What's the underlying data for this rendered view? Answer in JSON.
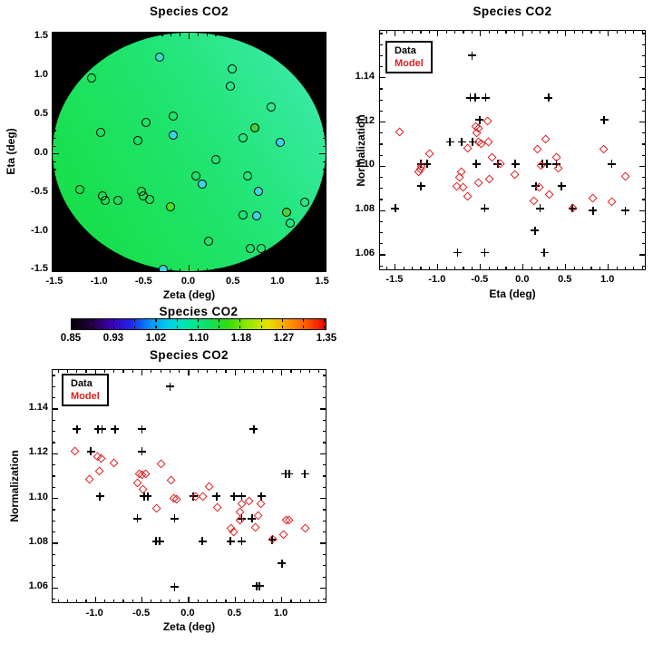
{
  "figure": {
    "background": "#ffffff"
  },
  "colors": {
    "data_marker": "#000000",
    "model_marker": "#dd2020",
    "legend_model_text": "#dd2020",
    "map_background": "#000000"
  },
  "legend": {
    "data_label": "Data",
    "model_label": "Model"
  },
  "chart_data": [
    {
      "id": "map",
      "type": "scatter",
      "title": "Species CO2",
      "xlabel": "Zeta (deg)",
      "ylabel": "Eta (deg)",
      "xlim": [
        -1.53,
        1.55
      ],
      "ylim": [
        -1.53,
        1.56
      ],
      "xticks": [
        -1.5,
        -1.0,
        -0.5,
        0.0,
        0.5,
        1.0,
        1.5
      ],
      "yticks": [
        -1.5,
        -1.0,
        -0.5,
        0.0,
        0.5,
        1.0,
        1.5
      ],
      "background": "#000000",
      "field_shape": "circle",
      "field_angle": "58deg",
      "field_gradient": [
        "#15dd3c",
        "#20e573",
        "#40ebb4"
      ],
      "points": [
        [
          -0.33,
          1.24,
          "#35dccc"
        ],
        [
          -1.09,
          0.98,
          ""
        ],
        [
          0.48,
          1.09,
          ""
        ],
        [
          0.46,
          0.87,
          ""
        ],
        [
          0.92,
          0.6,
          ""
        ],
        [
          -0.18,
          0.49,
          ""
        ],
        [
          -0.48,
          0.41,
          ""
        ],
        [
          0.74,
          0.34,
          "#44cf36"
        ],
        [
          -0.99,
          0.28,
          ""
        ],
        [
          -0.18,
          0.24,
          "#3cd2e8"
        ],
        [
          0.6,
          0.21,
          ""
        ],
        [
          -0.57,
          0.17,
          ""
        ],
        [
          1.02,
          0.15,
          "#3cd2e8"
        ],
        [
          0.3,
          -0.07,
          ""
        ],
        [
          0.08,
          -0.28,
          ""
        ],
        [
          0.66,
          -0.28,
          ""
        ],
        [
          0.15,
          -0.39,
          "#3cd2e8"
        ],
        [
          -1.22,
          -0.46,
          ""
        ],
        [
          0.78,
          -0.48,
          "#3cd2e8"
        ],
        [
          -0.53,
          -0.48,
          ""
        ],
        [
          -0.51,
          -0.54,
          ""
        ],
        [
          -0.44,
          -0.58,
          ""
        ],
        [
          -0.97,
          -0.54,
          ""
        ],
        [
          -0.94,
          -0.6,
          ""
        ],
        [
          -0.8,
          -0.6,
          ""
        ],
        [
          1.3,
          -0.62,
          ""
        ],
        [
          -0.21,
          -0.68,
          "#3fe81e"
        ],
        [
          0.6,
          -0.78,
          ""
        ],
        [
          0.76,
          -0.8,
          "#3cd2e8"
        ],
        [
          1.09,
          -0.75,
          "#4ad438"
        ],
        [
          1.13,
          -0.89,
          ""
        ],
        [
          0.22,
          -1.12,
          ""
        ],
        [
          0.69,
          -1.22,
          ""
        ],
        [
          0.81,
          -1.22,
          ""
        ],
        [
          -0.29,
          -1.48,
          "#3cd2e8"
        ]
      ]
    },
    {
      "id": "eta",
      "type": "scatter",
      "title": "Species CO2",
      "xlabel": "Eta (deg)",
      "ylabel": "Normalization",
      "xlim": [
        -1.68,
        1.45
      ],
      "ylim": [
        1.0526,
        1.1612
      ],
      "xticks": [
        -1.5,
        -1.0,
        -0.5,
        0.0,
        0.5,
        1.0
      ],
      "yticks": [
        1.06,
        1.08,
        1.1,
        1.12,
        1.14
      ],
      "legend": [
        "Data",
        "Model"
      ],
      "series": [
        {
          "name": "Data",
          "marker": "plus",
          "color": "#000000",
          "points": [
            [
              -0.6,
              1.15
            ],
            [
              -0.62,
              1.131
            ],
            [
              -0.56,
              1.131
            ],
            [
              -0.44,
              1.131
            ],
            [
              0.3,
              1.131
            ],
            [
              -0.51,
              1.121
            ],
            [
              0.95,
              1.121
            ],
            [
              -0.86,
              1.111
            ],
            [
              -0.72,
              1.111
            ],
            [
              -0.59,
              1.111
            ],
            [
              -1.2,
              1.101
            ],
            [
              -1.13,
              1.101
            ],
            [
              -0.55,
              1.101
            ],
            [
              -0.3,
              1.101
            ],
            [
              -0.09,
              1.101
            ],
            [
              0.23,
              1.101
            ],
            [
              0.28,
              1.101
            ],
            [
              0.39,
              1.101
            ],
            [
              1.04,
              1.101
            ],
            [
              -1.2,
              1.091
            ],
            [
              0.15,
              1.091
            ],
            [
              0.45,
              1.091
            ],
            [
              -1.5,
              1.081
            ],
            [
              -0.45,
              1.081
            ],
            [
              0.2,
              1.081
            ],
            [
              0.58,
              1.081
            ],
            [
              0.82,
              1.08
            ],
            [
              1.2,
              1.08
            ],
            [
              0.14,
              1.071
            ],
            [
              -0.77,
              1.061
            ],
            [
              -0.45,
              1.061
            ],
            [
              0.25,
              1.061
            ]
          ]
        },
        {
          "name": "Model",
          "marker": "diamond",
          "color": "#dd2020",
          "points": [
            [
              -1.45,
              1.1155
            ],
            [
              -1.1,
              1.1055
            ],
            [
              -1.19,
              1.1
            ],
            [
              -1.21,
              1.0985
            ],
            [
              -1.23,
              1.0975
            ],
            [
              -0.42,
              1.1205
            ],
            [
              -0.56,
              1.118
            ],
            [
              -0.52,
              1.117
            ],
            [
              -0.54,
              1.115
            ],
            [
              -0.52,
              1.111
            ],
            [
              -0.49,
              1.11
            ],
            [
              -0.41,
              1.111
            ],
            [
              -0.65,
              1.108
            ],
            [
              -0.73,
              1.0975
            ],
            [
              -0.75,
              1.095
            ],
            [
              -0.78,
              1.091
            ],
            [
              -0.7,
              1.0905
            ],
            [
              -0.65,
              1.0865
            ],
            [
              -0.52,
              1.0925
            ],
            [
              -0.36,
              1.104
            ],
            [
              -0.27,
              1.101
            ],
            [
              -0.4,
              1.094
            ],
            [
              -0.1,
              1.0963
            ],
            [
              0.26,
              1.112
            ],
            [
              0.17,
              1.1076
            ],
            [
              0.39,
              1.104
            ],
            [
              0.21,
              1.1005
            ],
            [
              0.41,
              1.099
            ],
            [
              0.13,
              1.0845
            ],
            [
              0.19,
              1.0905
            ],
            [
              0.31,
              1.087
            ],
            [
              0.58,
              1.0812
            ],
            [
              0.82,
              1.0857
            ],
            [
              0.95,
              1.1076
            ],
            [
              1.04,
              1.084
            ],
            [
              1.2,
              1.0952
            ]
          ]
        }
      ]
    },
    {
      "id": "cbar",
      "type": "colorbar",
      "title": "Species CO2",
      "ticks": [
        0.85,
        0.93,
        1.02,
        1.1,
        1.18,
        1.27,
        1.35
      ],
      "minor_divisions": 12,
      "gradient": [
        "#050005",
        "#23003c",
        "#3d00b0",
        "#2222ee",
        "#0090ff",
        "#00d2e8",
        "#00e8a0",
        "#10e060",
        "#30dc10",
        "#90e800",
        "#e2e400",
        "#ffa000",
        "#ff5a00",
        "#ee0000"
      ]
    },
    {
      "id": "zeta",
      "type": "scatter",
      "title": "Species CO2",
      "xlabel": "Zeta (deg)",
      "ylabel": "Normalization",
      "xlim": [
        -1.46,
        1.49
      ],
      "ylim": [
        1.0529,
        1.1574
      ],
      "xticks": [
        -1.0,
        -0.5,
        0.0,
        0.5,
        1.0
      ],
      "yticks": [
        1.06,
        1.08,
        1.1,
        1.12,
        1.14
      ],
      "legend": [
        "Data",
        "Model"
      ],
      "series": [
        {
          "name": "Data",
          "marker": "plus",
          "color": "#000000",
          "points": [
            [
              -0.2,
              1.15
            ],
            [
              -1.2,
              1.131
            ],
            [
              -0.97,
              1.131
            ],
            [
              -0.93,
              1.131
            ],
            [
              -0.79,
              1.131
            ],
            [
              -0.5,
              1.131
            ],
            [
              0.7,
              1.131
            ],
            [
              -1.05,
              1.121
            ],
            [
              -0.5,
              1.121
            ],
            [
              1.04,
              1.111
            ],
            [
              1.08,
              1.111
            ],
            [
              1.25,
              1.111
            ],
            [
              -0.95,
              1.101
            ],
            [
              -0.48,
              1.101
            ],
            [
              -0.44,
              1.101
            ],
            [
              0.05,
              1.101
            ],
            [
              0.3,
              1.101
            ],
            [
              0.49,
              1.101
            ],
            [
              0.57,
              1.101
            ],
            [
              0.78,
              1.101
            ],
            [
              -0.55,
              1.091
            ],
            [
              -0.15,
              1.091
            ],
            [
              0.57,
              1.091
            ],
            [
              0.68,
              1.091
            ],
            [
              -0.35,
              1.081
            ],
            [
              -0.31,
              1.081
            ],
            [
              0.15,
              1.081
            ],
            [
              0.45,
              1.081
            ],
            [
              0.57,
              1.081
            ],
            [
              0.9,
              1.0815
            ],
            [
              1.0,
              1.071
            ],
            [
              -0.15,
              1.0605
            ],
            [
              0.73,
              1.061
            ],
            [
              0.76,
              1.061
            ]
          ]
        },
        {
          "name": "Model",
          "marker": "diamond",
          "color": "#dd2020",
          "points": [
            [
              -1.22,
              1.121
            ],
            [
              -0.98,
              1.1185
            ],
            [
              -0.94,
              1.118
            ],
            [
              -0.8,
              1.116
            ],
            [
              -0.96,
              1.112
            ],
            [
              -1.06,
              1.1085
            ],
            [
              -0.55,
              1.107
            ],
            [
              -0.53,
              1.111
            ],
            [
              -0.5,
              1.1105
            ],
            [
              -0.46,
              1.111
            ],
            [
              -0.49,
              1.104
            ],
            [
              -0.3,
              1.1155
            ],
            [
              -0.19,
              1.108
            ],
            [
              -0.34,
              1.0955
            ],
            [
              -0.16,
              1.1
            ],
            [
              -0.13,
              1.0995
            ],
            [
              0.07,
              1.101
            ],
            [
              0.15,
              1.101
            ],
            [
              0.22,
              1.1055
            ],
            [
              0.31,
              1.096
            ],
            [
              0.45,
              1.0865
            ],
            [
              0.48,
              1.085
            ],
            [
              0.55,
              1.094
            ],
            [
              0.57,
              1.0975
            ],
            [
              0.55,
              1.0905
            ],
            [
              0.65,
              1.099
            ],
            [
              0.72,
              1.087
            ],
            [
              0.75,
              1.0925
            ],
            [
              0.78,
              1.0975
            ],
            [
              0.9,
              1.082
            ],
            [
              1.02,
              1.084
            ],
            [
              1.05,
              1.0905
            ],
            [
              1.08,
              1.0905
            ],
            [
              1.25,
              1.0865
            ]
          ]
        }
      ]
    }
  ]
}
